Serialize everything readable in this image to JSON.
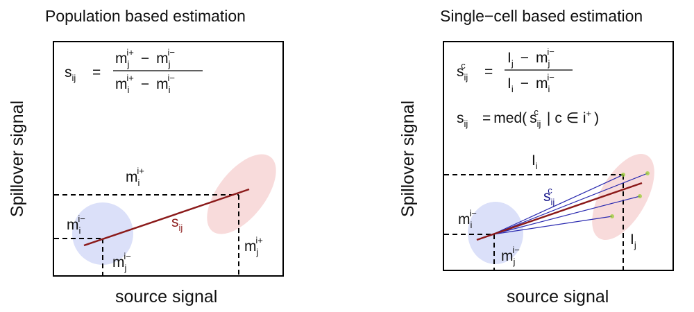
{
  "colors": {
    "population_ellipse": "#cfd6f7",
    "target_ellipse": "#f6cfcf",
    "regression_line": "#8b1a1a",
    "cell_lines": "#2a2ab0",
    "cell_points": "#9acd32"
  },
  "left_panel": {
    "title": "Population based estimation",
    "y_axis_label": "Spillover signal",
    "x_axis_label": "source signal",
    "formula": {
      "lhs": {
        "base": "s",
        "sub": "ij"
      },
      "equals": "=",
      "numerator": "m_j^{i+} − m_j^{i−}",
      "denominator": "m_i^{i+} − m_i^{i−}",
      "minus": "−"
    },
    "labels": {
      "m": "m",
      "i": "i",
      "j": "j",
      "plus": "+",
      "minus": "−",
      "slope": "s",
      "slope_sub": "ij"
    }
  },
  "right_panel": {
    "title": "Single−cell based estimation",
    "y_axis_label": "Spillover signal",
    "x_axis_label": "source signal",
    "formula1": {
      "lhs": "s_ij^c",
      "equals": "=",
      "numerator": "I_j − m_j^{i−}",
      "denominator": "I_i − m_i^{i−}"
    },
    "formula2": {
      "lhs": "s_ij",
      "equals": "=",
      "rhs_open": "med(",
      "rhs_mid": "|",
      "rhs_in": "c ∈ i",
      "rhs_close": ")"
    },
    "labels": {
      "I": "I",
      "i": "i",
      "j": "j",
      "c": "c",
      "ij": "ij",
      "plus": "+",
      "minus": "−",
      "m": "m",
      "s": "s"
    }
  }
}
